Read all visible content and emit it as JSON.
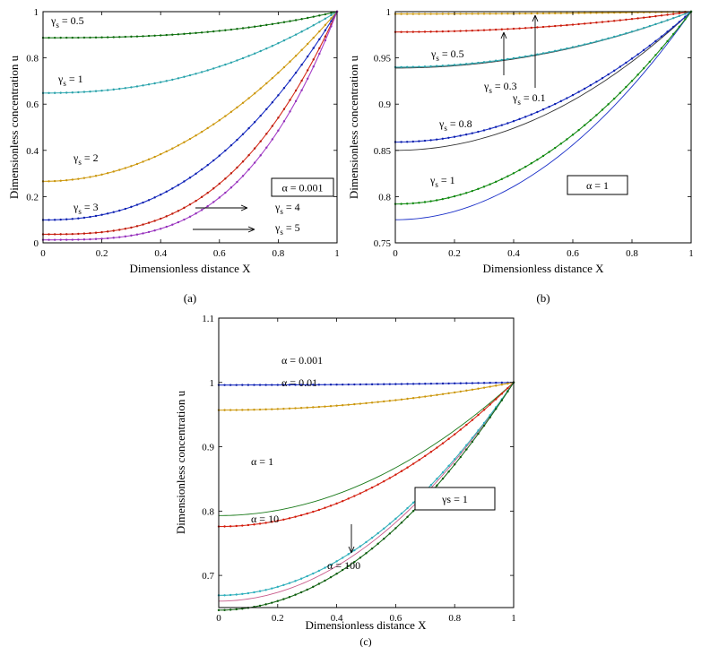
{
  "figure": {
    "panels": [
      {
        "id": "a",
        "caption": "(a)",
        "box_label": "α = 0.001",
        "chart_data": {
          "type": "line",
          "xlabel": "Dimensionless distance X",
          "ylabel": "Dimensionless concentration u",
          "xlim": [
            0,
            1
          ],
          "ylim": [
            0,
            1
          ],
          "xticks": [
            "0",
            "0.2",
            "0.4",
            "0.6",
            "0.8",
            "1"
          ],
          "yticks": [
            "0",
            "0.2",
            "0.4",
            "0.6",
            "0.8",
            "1"
          ],
          "series": [
            {
              "name": "γs = 0.5",
              "label": "γ",
              "sub": "s",
              "value": " = 0.5",
              "u0": 0.887,
              "color": "#1a7a1a",
              "dotcolor": "#0a6a0a",
              "dotted": true
            },
            {
              "name": "γs = 1",
              "label": "γ",
              "sub": "s",
              "value": " = 1",
              "u0": 0.648,
              "color": "#3bb0b8",
              "dotcolor": "#2aa0a8",
              "dotted": true
            },
            {
              "name": "γs = 2",
              "label": "γ",
              "sub": "s",
              "value": " = 2",
              "u0": 0.266,
              "color": "#d4a017",
              "dotcolor": "#c89510",
              "dotted": true
            },
            {
              "name": "γs = 3",
              "label": "γ",
              "sub": "s",
              "value": " = 3",
              "u0": 0.099,
              "color": "#1a2fc8",
              "dotcolor": "#0d1fa8",
              "dotted": true
            },
            {
              "name": "γs = 4",
              "label": "γ",
              "sub": "s",
              "value": " = 4",
              "u0": 0.037,
              "color": "#d42a1a",
              "dotcolor": "#b81a0a",
              "dotted": true
            },
            {
              "name": "γs = 5",
              "label": "γ",
              "sub": "s",
              "value": " = 5",
              "u0": 0.013,
              "color": "#a640c8",
              "dotcolor": "#9030b8",
              "dotted": true
            }
          ]
        }
      },
      {
        "id": "b",
        "caption": "(b)",
        "box_label": "α = 1",
        "chart_data": {
          "type": "line",
          "xlabel": "Dimensionless distance X",
          "ylabel": "Dimensionless concentration u",
          "xlim": [
            0,
            1
          ],
          "ylim": [
            0.75,
            1
          ],
          "xticks": [
            "0",
            "0.2",
            "0.4",
            "0.6",
            "0.8",
            "1"
          ],
          "yticks": [
            "0.75",
            "0.8",
            "0.85",
            "0.9",
            "0.95",
            "1"
          ],
          "series": [
            {
              "name": "γs = 0.1",
              "label": "γ",
              "sub": "s",
              "value": " = 0.1",
              "u0": 0.9975,
              "color": "#d4a017",
              "dotcolor": "#c89510",
              "dotted": true
            },
            {
              "name": "γs = 0.3",
              "label": "γ",
              "sub": "s",
              "value": " = 0.3",
              "u0": 0.978,
              "color": "#d42a1a",
              "dotcolor": "#c81a0a",
              "dotted": true
            },
            {
              "name": "γs = 0.5",
              "label": "γ",
              "sub": "s",
              "value": " = 0.5",
              "u0": 0.94,
              "color": "#3bb0b8",
              "dotcolor": "#2aa0a8",
              "dotted": true
            },
            {
              "name": "γs = 0.8",
              "label": "γ",
              "sub": "s",
              "value": " = 0.8",
              "u0": 0.859,
              "color": "#1a2fc8",
              "dotcolor": "#0d1fa8",
              "dotted": true
            },
            {
              "name": "γs = 1",
              "label": "γ",
              "sub": "s",
              "value": " = 1",
              "u0": 0.792,
              "color": "#1a8a1a",
              "dotcolor": "#0a8a0a",
              "dotted": true
            }
          ]
        }
      },
      {
        "id": "c",
        "caption": "(c)",
        "box_label": "γs = 1",
        "chart_data": {
          "type": "line",
          "xlabel": "Dimensionless distance X",
          "ylabel": "Dimensionless concentration u",
          "xlim": [
            0,
            1
          ],
          "ylim": [
            0.65,
            1.1
          ],
          "xticks": [
            "0",
            "0.2",
            "0.4",
            "0.6",
            "0.8",
            "1"
          ],
          "yticks": [
            "0.7",
            "0.8",
            "0.9",
            "1",
            "1.1"
          ],
          "series": [
            {
              "name": "α = 0.001",
              "label": "α",
              "value": " = 0.001",
              "u0": 0.996,
              "color": "#1a2fc8",
              "dotcolor": "#0d1fa8",
              "dotted": true
            },
            {
              "name": "α = 0.01",
              "label": "α",
              "value": " = 0.01",
              "u0": 0.957,
              "color": "#d4a017",
              "dotcolor": "#c89510",
              "dotted": true
            },
            {
              "name": "α = 1",
              "label": "α",
              "value": " = 1",
              "u0": 0.776,
              "color": "#d42a1a",
              "dotcolor": "#d41a0a",
              "dotted": true
            },
            {
              "name": "α = 10",
              "label": "α",
              "value": " = 10",
              "u0": 0.669,
              "color": "#3bb0b8",
              "dotcolor": "#2ab0c0",
              "dotted": true
            },
            {
              "name": "α = 100",
              "label": "α",
              "value": " = 100",
              "u0": 0.646,
              "color": "#1a6a1a",
              "dotcolor": "#0a5a0a",
              "dotted": true
            }
          ]
        }
      }
    ]
  }
}
